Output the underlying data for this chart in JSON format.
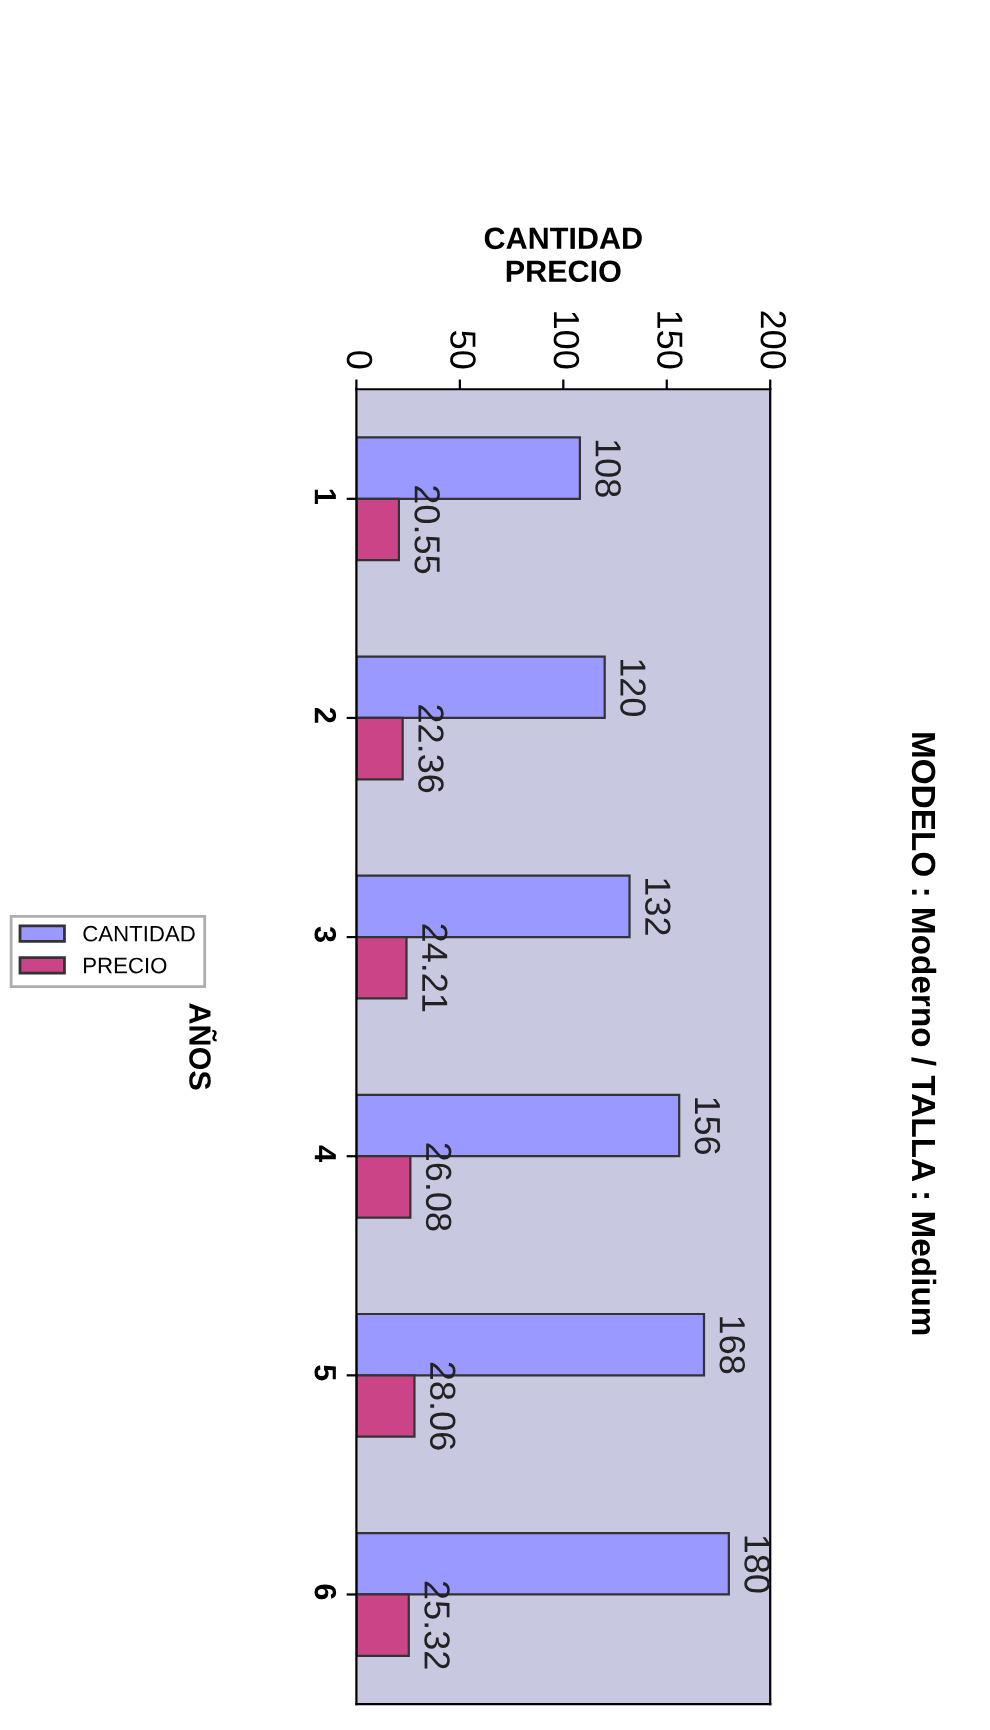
{
  "chart_data": {
    "type": "bar",
    "orientation": "horizontal",
    "title": "MODELO : Moderno / TALLA : Medium",
    "xlabel": "CANTIDAD\nPRECIO",
    "ylabel": "AÑOS",
    "categories": [
      "1",
      "2",
      "3",
      "4",
      "5",
      "6"
    ],
    "series": [
      {
        "name": "CANTIDAD",
        "color": "#9999ff",
        "values": [
          108,
          120,
          132,
          156,
          168,
          180
        ]
      },
      {
        "name": "PRECIO",
        "color": "#cc4488",
        "values": [
          20.55,
          22.36,
          24.21,
          26.08,
          28.06,
          25.32
        ]
      }
    ],
    "xlim": [
      0,
      200
    ],
    "xticks": [
      0,
      50,
      100,
      150,
      200
    ],
    "grid": false,
    "legend": "left",
    "data_labels": true
  }
}
